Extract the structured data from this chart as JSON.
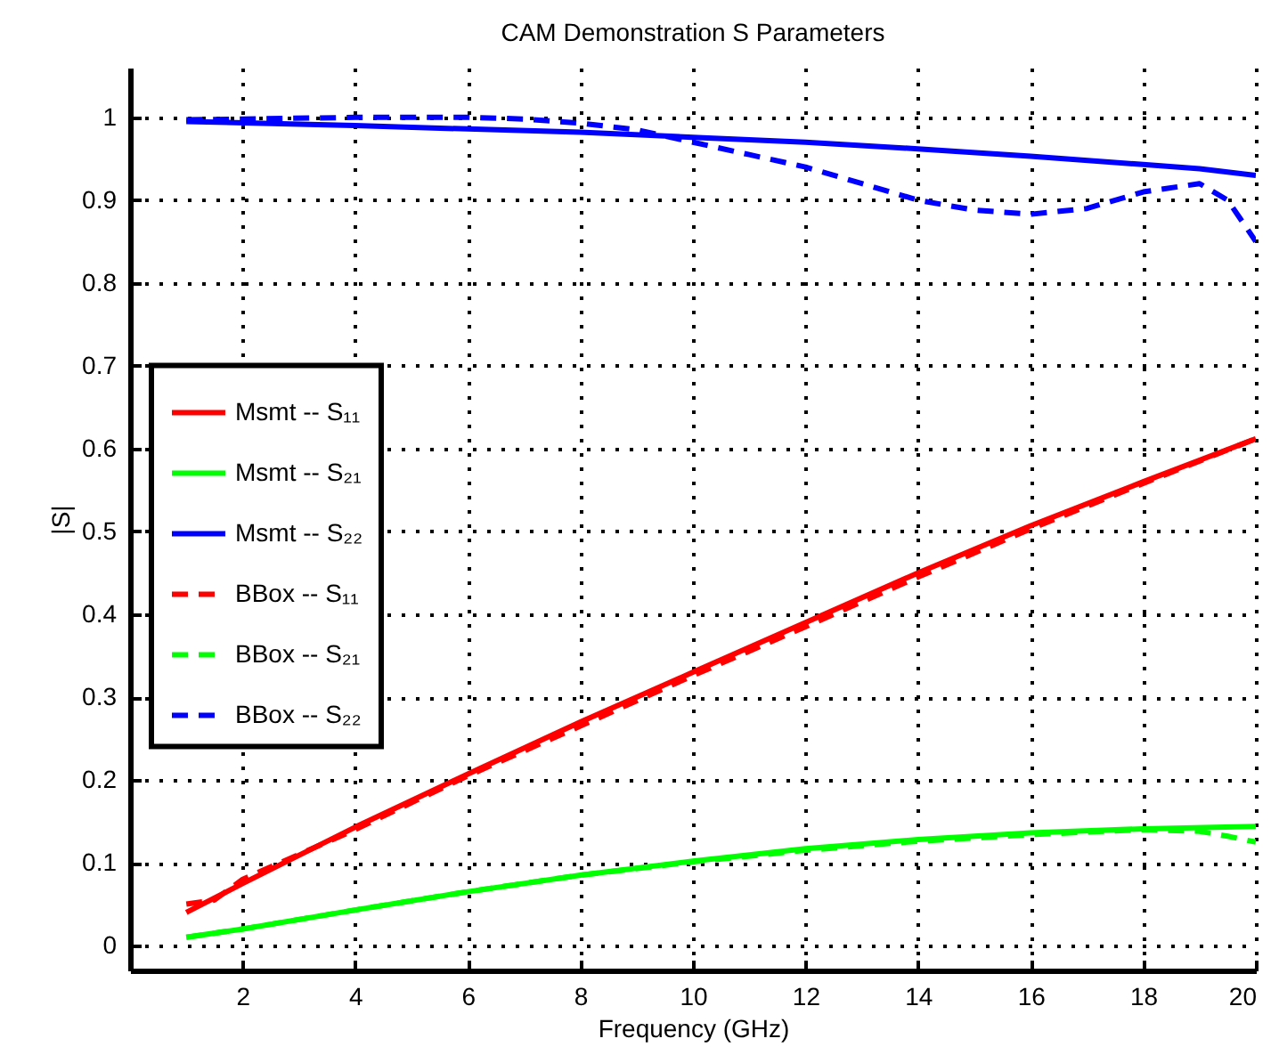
{
  "chart_data": {
    "type": "line",
    "title": "CAM Demonstration S Parameters",
    "xlabel": "Frequency (GHz)",
    "ylabel": "|S|",
    "xlim": [
      0,
      20
    ],
    "xticks": [
      2,
      4,
      6,
      8,
      10,
      12,
      14,
      16,
      18,
      20
    ],
    "ylim": [
      -0.03,
      1.06
    ],
    "yticks": [
      0,
      0.1,
      0.2,
      0.3,
      0.4,
      0.5,
      0.6,
      0.7,
      0.8,
      0.9,
      1
    ],
    "grid": true,
    "legend": "left",
    "series": [
      {
        "name": "Msmt -- S₁₁",
        "color": "#ff0000",
        "line_style": "solid",
        "x": [
          1,
          2,
          4,
          6,
          8,
          10,
          12,
          14,
          16,
          18,
          20
        ],
        "values": [
          0.04,
          0.075,
          0.143,
          0.207,
          0.27,
          0.33,
          0.39,
          0.45,
          0.507,
          0.56,
          0.612
        ]
      },
      {
        "name": "Msmt -- S₂₁",
        "color": "#00ff00",
        "line_style": "solid",
        "x": [
          1,
          2,
          4,
          6,
          8,
          10,
          12,
          14,
          16,
          18,
          20
        ],
        "values": [
          0.01,
          0.02,
          0.043,
          0.065,
          0.085,
          0.102,
          0.117,
          0.128,
          0.136,
          0.141,
          0.144
        ]
      },
      {
        "name": "Msmt -- S₂₂",
        "color": "#0000ff",
        "line_style": "solid",
        "x": [
          1,
          4,
          8,
          10,
          12,
          14,
          16,
          18,
          19,
          20
        ],
        "values": [
          0.995,
          0.99,
          0.982,
          0.976,
          0.97,
          0.962,
          0.953,
          0.943,
          0.938,
          0.93
        ]
      },
      {
        "name": "BBox -- S₁₁",
        "color": "#ff0000",
        "line_style": "dashed",
        "x": [
          1,
          1.5,
          2,
          3,
          4,
          6,
          8,
          10,
          12,
          14,
          16,
          18,
          20
        ],
        "values": [
          0.05,
          0.055,
          0.08,
          0.11,
          0.14,
          0.205,
          0.265,
          0.326,
          0.385,
          0.445,
          0.503,
          0.558,
          0.612
        ]
      },
      {
        "name": "BBox -- S₂₁",
        "color": "#00ff00",
        "line_style": "dashed",
        "x": [
          1,
          2,
          4,
          6,
          8,
          10,
          12,
          14,
          16,
          18,
          19,
          19.5,
          20
        ],
        "values": [
          0.01,
          0.02,
          0.043,
          0.065,
          0.085,
          0.101,
          0.115,
          0.126,
          0.134,
          0.14,
          0.138,
          0.132,
          0.125
        ]
      },
      {
        "name": "BBox -- S₂₂",
        "color": "#0000ff",
        "line_style": "dashed",
        "x": [
          1,
          2,
          4,
          6,
          7,
          8,
          9,
          10,
          11,
          12,
          13,
          14,
          15,
          16,
          17,
          18,
          19,
          19.5,
          20
        ],
        "values": [
          0.997,
          0.998,
          1.0,
          1.0,
          0.998,
          0.993,
          0.985,
          0.97,
          0.955,
          0.94,
          0.92,
          0.9,
          0.888,
          0.883,
          0.89,
          0.91,
          0.92,
          0.9,
          0.85
        ]
      }
    ]
  }
}
